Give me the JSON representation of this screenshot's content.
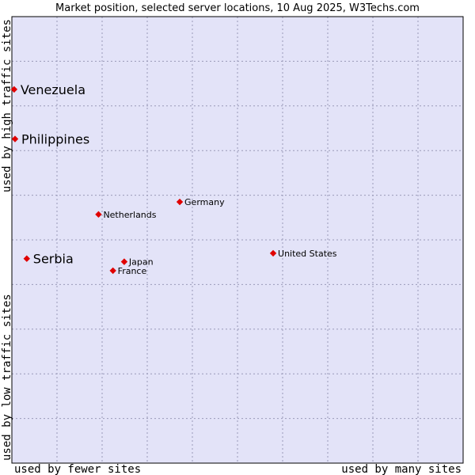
{
  "chart_data": {
    "type": "scatter",
    "title": "Market position, selected server locations, 10 Aug 2025, W3Techs.com",
    "xlabel_left": "used by fewer sites",
    "xlabel_right": "used by many sites",
    "ylabel_bottom": "used by low traffic sites",
    "ylabel_top": "used by high traffic sites",
    "xlim": [
      0,
      100
    ],
    "ylim": [
      0,
      100
    ],
    "grid": true,
    "colors": {
      "plot_bg": "#e3e3f8",
      "point": "#e00000",
      "frame": "#000000"
    },
    "points": [
      {
        "name": "Venezuela",
        "x": 0.5,
        "y": 83.7,
        "size": "large"
      },
      {
        "name": "Philippines",
        "x": 0.7,
        "y": 72.6,
        "size": "large"
      },
      {
        "name": "Serbia",
        "x": 3.3,
        "y": 45.8,
        "size": "large"
      },
      {
        "name": "Germany",
        "x": 37.2,
        "y": 58.5,
        "size": "small"
      },
      {
        "name": "Netherlands",
        "x": 19.2,
        "y": 55.7,
        "size": "small"
      },
      {
        "name": "Japan",
        "x": 24.9,
        "y": 45.1,
        "size": "small"
      },
      {
        "name": "France",
        "x": 22.4,
        "y": 43.1,
        "size": "small"
      },
      {
        "name": "United States",
        "x": 57.9,
        "y": 47.0,
        "size": "small"
      }
    ]
  }
}
